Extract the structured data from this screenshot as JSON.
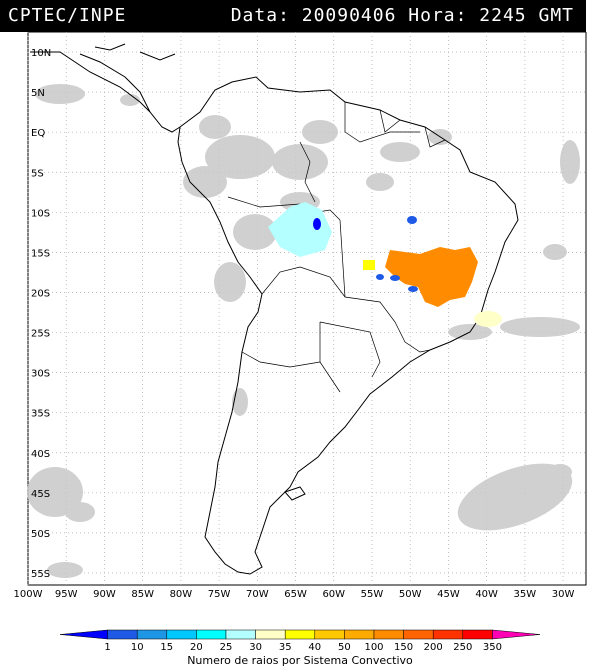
{
  "header": {
    "title": "CPTEC/INPE",
    "stamp": "Data: 20090406 Hora: 2245 GMT"
  },
  "map": {
    "lat_labels": [
      "10N",
      "5N",
      "EQ",
      "5S",
      "10S",
      "15S",
      "20S",
      "25S",
      "30S",
      "35S",
      "40S",
      "45S",
      "50S",
      "55S"
    ],
    "lon_labels": [
      "100W",
      "95W",
      "90W",
      "85W",
      "80W",
      "75W",
      "70W",
      "65W",
      "60W",
      "55W",
      "50W",
      "45W",
      "40W",
      "35W",
      "30W"
    ],
    "lon_range": [
      -100,
      -27
    ],
    "lat_range": [
      -56.5,
      12.5
    ]
  },
  "legend": {
    "title": "Numero de raios por Sistema Convectivo",
    "values": [
      "1",
      "10",
      "15",
      "20",
      "25",
      "30",
      "35",
      "40",
      "50",
      "100",
      "150",
      "200",
      "250",
      "350"
    ],
    "colors": [
      "#0000ff",
      "#1e5ae6",
      "#1e96e6",
      "#00c8ff",
      "#00ffff",
      "#b4ffff",
      "#ffffc8",
      "#ffff00",
      "#ffc800",
      "#ffaa00",
      "#ff8c00",
      "#ff6400",
      "#ff3200",
      "#ff0000",
      "#ff00b4"
    ]
  },
  "systems": [
    {
      "name": "orange-cluster-main",
      "color": "#ff8c00"
    },
    {
      "name": "yellow-spot",
      "color": "#ffff00"
    },
    {
      "name": "cream-patch",
      "color": "#ffffc8"
    },
    {
      "name": "lightblue-patch",
      "color": "#b4ffff"
    },
    {
      "name": "blue-cells",
      "color": "#1e5ae6"
    }
  ]
}
